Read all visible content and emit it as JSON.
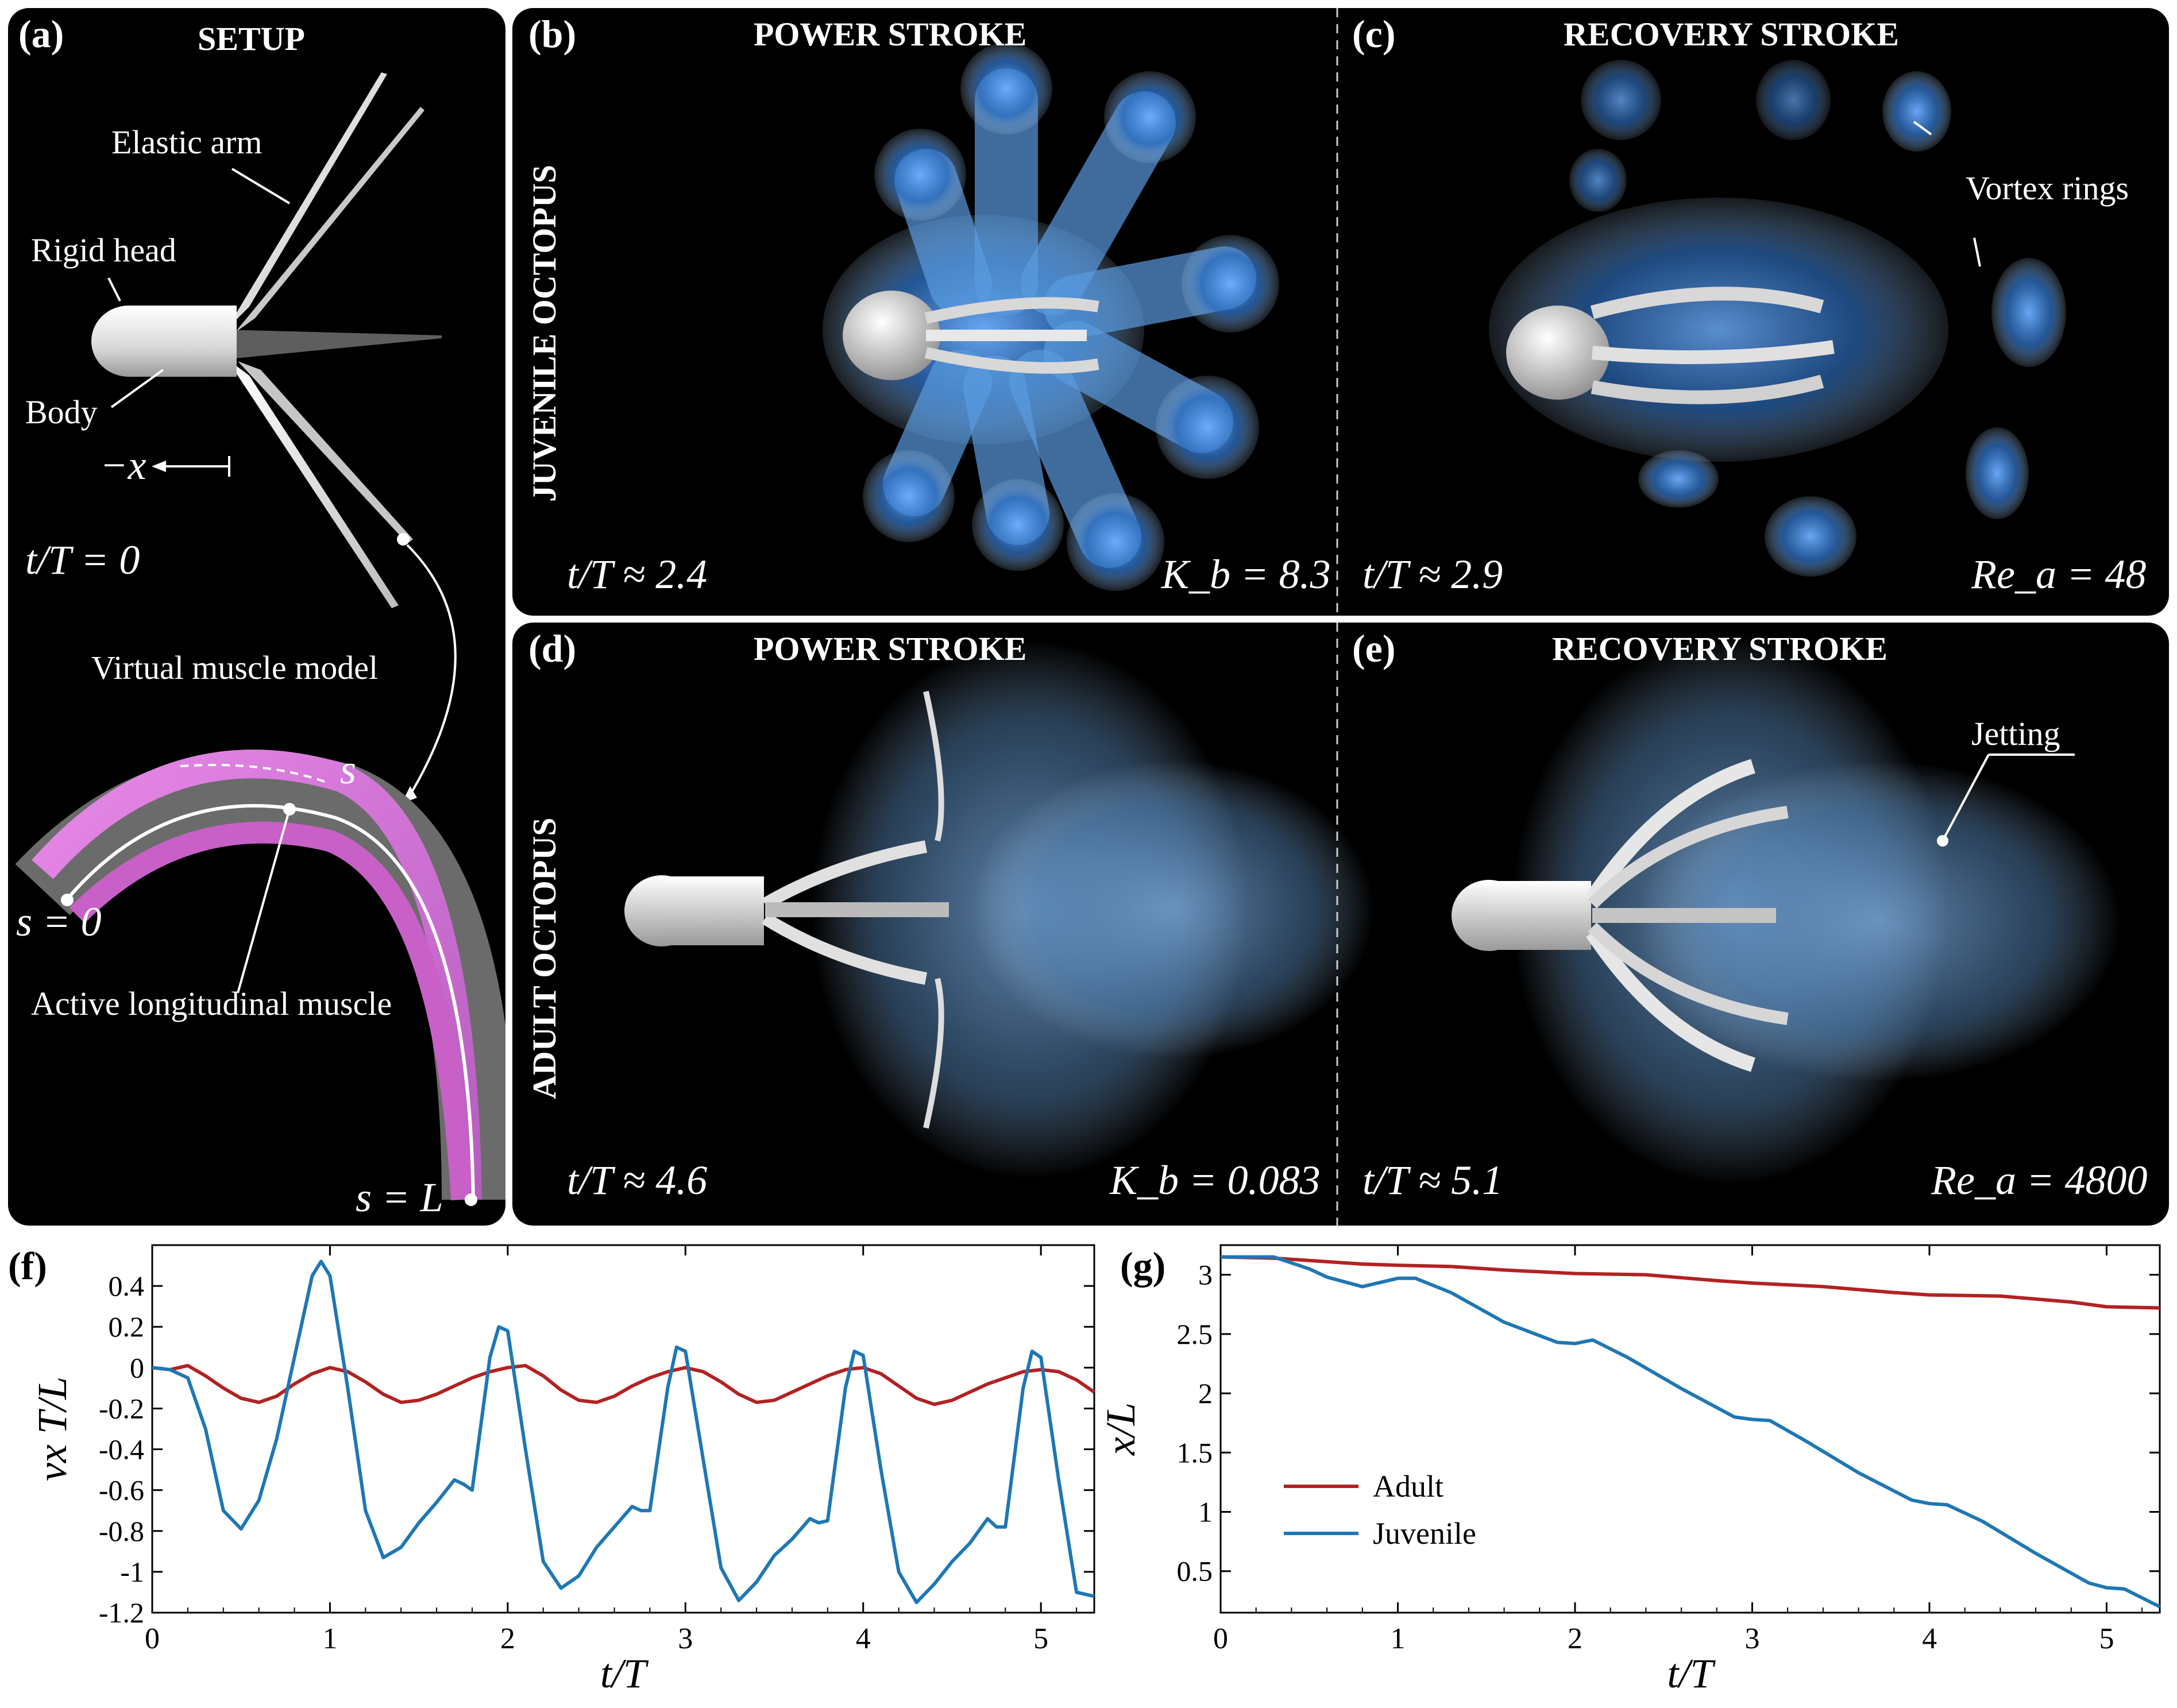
{
  "panels": {
    "a": {
      "label": "(a)",
      "title": "SETUP",
      "annotations": {
        "elastic_arm": "Elastic arm",
        "rigid_head": "Rigid head",
        "body": "Body",
        "minus_x": "−x",
        "time": "t/T = 0",
        "virtual_muscle": "Virtual muscle model",
        "s": "s",
        "s0": "s = 0",
        "active_muscle": "Active longitudinal muscle",
        "sL": "s = L"
      }
    },
    "b": {
      "label": "(b)",
      "title": "POWER STROKE",
      "time": "t/T ≈ 2.4",
      "param": "K_b = 8.3"
    },
    "c": {
      "label": "(c)",
      "title": "RECOVERY STROKE",
      "time": "t/T ≈ 2.9",
      "param": "Re_a = 48",
      "annotation": "Vortex rings"
    },
    "d": {
      "label": "(d)",
      "title": "POWER STROKE",
      "time": "t/T ≈ 4.6",
      "param": "K_b = 0.083"
    },
    "e": {
      "label": "(e)",
      "title": "RECOVERY STROKE",
      "time": "t/T ≈ 5.1",
      "param": "Re_a = 4800",
      "annotation": "Jetting"
    },
    "row_labels": {
      "juvenile": "JUVENILE OCTOPUS",
      "adult": "ADULT OCTOPUS"
    }
  },
  "colors": {
    "adult": "#b22222",
    "juvenile": "#1f77b4",
    "vortex": "#3a7fd0"
  },
  "chart_data": [
    {
      "id": "f",
      "label": "(f)",
      "type": "line",
      "xlabel": "t/T",
      "ylabel": "v_x T/L",
      "xlim": [
        0,
        5.3
      ],
      "ylim": [
        -1.2,
        0.6
      ],
      "xticks": [
        0,
        1,
        2,
        3,
        4,
        5
      ],
      "yticks": [
        0.4,
        0.2,
        0,
        -0.2,
        -0.4,
        -0.6,
        -0.8,
        -1,
        -1.2
      ],
      "ytick_labels": [
        "0.4",
        "0.2",
        "0",
        "-0.2",
        "-0.4",
        "-0.6",
        "-0.8",
        "-1",
        "-1.2"
      ],
      "series": [
        {
          "name": "Adult",
          "color": "#b22222",
          "x": [
            0,
            0.1,
            0.2,
            0.3,
            0.4,
            0.5,
            0.6,
            0.7,
            0.8,
            0.9,
            1.0,
            1.1,
            1.2,
            1.3,
            1.4,
            1.5,
            1.6,
            1.7,
            1.8,
            1.9,
            2.0,
            2.1,
            2.2,
            2.3,
            2.4,
            2.5,
            2.6,
            2.7,
            2.8,
            2.9,
            3.0,
            3.1,
            3.2,
            3.3,
            3.4,
            3.5,
            3.6,
            3.7,
            3.8,
            3.9,
            4.0,
            4.1,
            4.2,
            4.3,
            4.4,
            4.5,
            4.6,
            4.7,
            4.8,
            4.9,
            5.0,
            5.1,
            5.2,
            5.3
          ],
          "y": [
            0,
            -0.01,
            0.01,
            -0.04,
            -0.1,
            -0.15,
            -0.17,
            -0.14,
            -0.08,
            -0.03,
            0,
            -0.02,
            -0.07,
            -0.13,
            -0.17,
            -0.16,
            -0.13,
            -0.09,
            -0.05,
            -0.02,
            0,
            0.01,
            -0.04,
            -0.11,
            -0.16,
            -0.17,
            -0.14,
            -0.09,
            -0.05,
            -0.02,
            0,
            -0.02,
            -0.07,
            -0.13,
            -0.17,
            -0.16,
            -0.12,
            -0.08,
            -0.04,
            -0.01,
            0,
            -0.03,
            -0.09,
            -0.15,
            -0.18,
            -0.16,
            -0.12,
            -0.08,
            -0.05,
            -0.02,
            -0.01,
            -0.02,
            -0.06,
            -0.12
          ]
        },
        {
          "name": "Juvenile",
          "color": "#1f77b4",
          "x": [
            0,
            0.1,
            0.2,
            0.3,
            0.4,
            0.5,
            0.6,
            0.7,
            0.8,
            0.9,
            0.95,
            1.0,
            1.1,
            1.2,
            1.3,
            1.4,
            1.5,
            1.6,
            1.7,
            1.75,
            1.8,
            1.9,
            1.95,
            2.0,
            2.1,
            2.2,
            2.3,
            2.4,
            2.5,
            2.6,
            2.7,
            2.75,
            2.8,
            2.9,
            2.95,
            3.0,
            3.1,
            3.2,
            3.3,
            3.4,
            3.5,
            3.6,
            3.7,
            3.75,
            3.8,
            3.9,
            3.95,
            4.0,
            4.1,
            4.2,
            4.3,
            4.4,
            4.5,
            4.6,
            4.7,
            4.75,
            4.8,
            4.9,
            4.95,
            5.0,
            5.1,
            5.2,
            5.3
          ],
          "y": [
            0,
            -0.01,
            -0.05,
            -0.3,
            -0.7,
            -0.79,
            -0.65,
            -0.35,
            0.05,
            0.45,
            0.52,
            0.45,
            -0.1,
            -0.7,
            -0.93,
            -0.88,
            -0.76,
            -0.66,
            -0.55,
            -0.57,
            -0.6,
            0.05,
            0.2,
            0.18,
            -0.4,
            -0.95,
            -1.08,
            -1.02,
            -0.88,
            -0.78,
            -0.68,
            -0.7,
            -0.7,
            -0.1,
            0.1,
            0.08,
            -0.45,
            -0.98,
            -1.14,
            -1.05,
            -0.92,
            -0.84,
            -0.74,
            -0.76,
            -0.75,
            -0.1,
            0.08,
            0.06,
            -0.5,
            -1.0,
            -1.15,
            -1.06,
            -0.95,
            -0.86,
            -0.74,
            -0.78,
            -0.78,
            -0.1,
            0.08,
            0.05,
            -0.55,
            -1.1,
            -1.12
          ]
        }
      ]
    },
    {
      "id": "g",
      "label": "(g)",
      "type": "line",
      "xlabel": "t/T",
      "ylabel": "x/L",
      "xlim": [
        0,
        5.3
      ],
      "ylim": [
        0.15,
        3.25
      ],
      "xticks": [
        0,
        1,
        2,
        3,
        4,
        5
      ],
      "yticks": [
        0.5,
        1,
        1.5,
        2,
        2.5,
        3
      ],
      "ytick_labels": [
        "0.5",
        "1",
        "1.5",
        "2",
        "2.5",
        "3"
      ],
      "legend": [
        "Adult",
        "Juvenile"
      ],
      "series": [
        {
          "name": "Adult",
          "color": "#b22222",
          "x": [
            0,
            0.3,
            0.5,
            0.8,
            1.0,
            1.3,
            1.6,
            2.0,
            2.4,
            2.8,
            3.0,
            3.4,
            3.8,
            4.0,
            4.4,
            4.8,
            5.0,
            5.3
          ],
          "y": [
            3.15,
            3.14,
            3.12,
            3.09,
            3.08,
            3.07,
            3.04,
            3.01,
            3.0,
            2.95,
            2.93,
            2.9,
            2.85,
            2.83,
            2.82,
            2.77,
            2.73,
            2.72
          ]
        },
        {
          "name": "Juvenile",
          "color": "#1f77b4",
          "x": [
            0,
            0.3,
            0.5,
            0.6,
            0.8,
            1.0,
            1.1,
            1.3,
            1.6,
            1.9,
            2.0,
            2.1,
            2.3,
            2.6,
            2.9,
            3.0,
            3.1,
            3.3,
            3.6,
            3.9,
            4.0,
            4.1,
            4.3,
            4.6,
            4.9,
            5.0,
            5.1,
            5.3
          ],
          "y": [
            3.15,
            3.15,
            3.05,
            2.98,
            2.9,
            2.97,
            2.97,
            2.85,
            2.6,
            2.43,
            2.42,
            2.45,
            2.3,
            2.04,
            1.8,
            1.78,
            1.77,
            1.6,
            1.33,
            1.1,
            1.07,
            1.06,
            0.92,
            0.65,
            0.4,
            0.36,
            0.35,
            0.2
          ]
        }
      ]
    }
  ]
}
